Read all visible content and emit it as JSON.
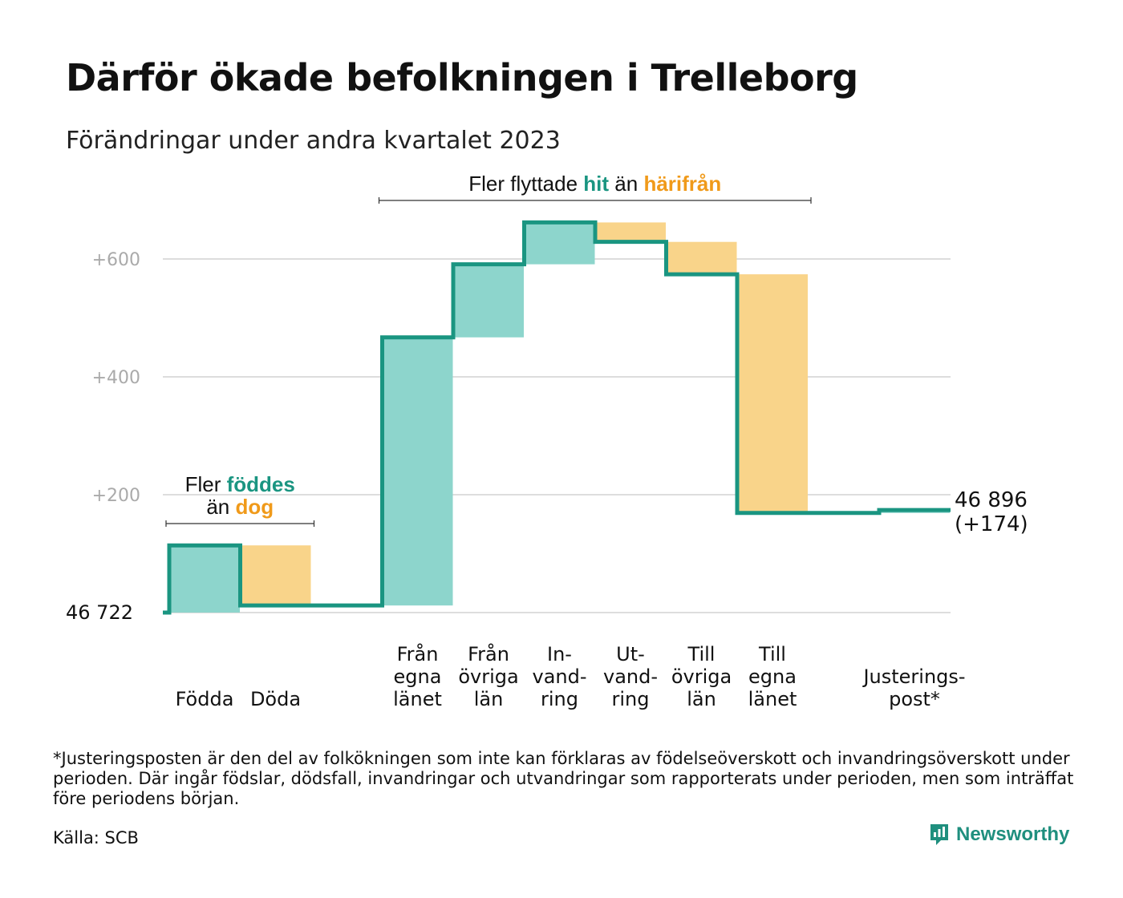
{
  "title": "Därför ökade befolkningen i Trelleborg",
  "subtitle": "Förändringar under andra kvartalet 2023",
  "footnote": "*Justeringsposten är den del av folkökningen som inte kan förklaras av födelseöverskott och invandringsöverskott under perioden. Där ingår födslar, dödsfall, invandringar och utvandringar som rapporterats under perioden, men som inträffat före periodens början.",
  "source": "Källa: SCB",
  "brand": {
    "name": "Newsworthy",
    "icon": "newsworthy-logo-icon"
  },
  "colors": {
    "increase": "#8dd5cc",
    "decrease": "#f9d48a",
    "line": "#1a9581",
    "accent_orange": "#f09a1a",
    "grid": "#dddddd",
    "tick": "#aaaaaa"
  },
  "chart_data": {
    "type": "waterfall",
    "start_value": 46722,
    "start_label": "46  722",
    "end_label_value": "46 896",
    "end_label_change": "(+174)",
    "ylim": [
      0,
      670
    ],
    "yticks": [
      200,
      400,
      600
    ],
    "ytick_labels": [
      "+200",
      "+400",
      "+600"
    ],
    "grid": true,
    "categories": [
      {
        "label": [
          "Födda"
        ],
        "delta": 114
      },
      {
        "label": [
          "Döda"
        ],
        "delta": -102
      },
      {
        "label": [],
        "delta": 0,
        "spacer": true
      },
      {
        "label": [
          "Från",
          "egna",
          "länet"
        ],
        "delta": 455
      },
      {
        "label": [
          "Från",
          "övriga",
          "län"
        ],
        "delta": 124
      },
      {
        "label": [
          "In-",
          "vand-",
          "ring"
        ],
        "delta": 71
      },
      {
        "label": [
          "Ut-",
          "vand-",
          "ring"
        ],
        "delta": -33
      },
      {
        "label": [
          "Till",
          "övriga",
          "län"
        ],
        "delta": -55
      },
      {
        "label": [
          "Till",
          "egna",
          "länet"
        ],
        "delta": -405
      },
      {
        "label": [],
        "delta": 0,
        "spacer": true
      },
      {
        "label": [
          "Justerings-",
          "post*"
        ],
        "delta": 5
      }
    ],
    "annotations": [
      {
        "lines": [
          [
            {
              "text": "Fler ",
              "style": "plain"
            },
            {
              "text": "föddes",
              "style": "increase"
            }
          ],
          [
            {
              "text": "än ",
              "style": "plain"
            },
            {
              "text": "dog",
              "style": "decrease"
            }
          ]
        ],
        "span": [
          0,
          1
        ]
      },
      {
        "lines": [
          [
            {
              "text": "Fler flyttade ",
              "style": "plain"
            },
            {
              "text": "hit",
              "style": "increase"
            },
            {
              "text": "  än ",
              "style": "plain"
            },
            {
              "text": "härifrån",
              "style": "decrease"
            }
          ]
        ],
        "span": [
          3,
          8
        ]
      }
    ]
  }
}
